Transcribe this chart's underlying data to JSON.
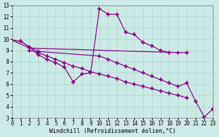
{
  "bg_color": "#cceae4",
  "grid_color": "#aad4cc",
  "line_color": "#880088",
  "marker": "+",
  "markersize": 4,
  "markeredgewidth": 1.2,
  "linewidth": 0.9,
  "x_min": 0,
  "x_max": 23,
  "y_min": 3,
  "y_max": 13,
  "xlabel": "Windchill (Refroidissement éolien,°C)",
  "xlabel_fontsize": 6.0,
  "tick_fontsize": 5.5,
  "series": [
    {
      "x": [
        0,
        1,
        2,
        3,
        4,
        5,
        6,
        7,
        8,
        9,
        10,
        11,
        12,
        13,
        14,
        15,
        16,
        17,
        18
      ],
      "y": [
        9.9,
        9.8,
        9.3,
        8.6,
        8.2,
        7.9,
        7.5,
        6.2,
        6.9,
        7.0,
        12.7,
        12.2,
        12.2,
        10.6,
        10.4,
        9.7,
        9.4,
        9.0,
        8.8
      ]
    },
    {
      "comment": "long diagonal: 0->9.9 down to 22->3.1, 23->3.8",
      "x": [
        0,
        1,
        2,
        3,
        10,
        11,
        12,
        13,
        14,
        15,
        16,
        17,
        18,
        19,
        20,
        21,
        22,
        23
      ],
      "y": [
        9.9,
        9.8,
        9.3,
        8.9,
        8.5,
        8.2,
        7.9,
        7.6,
        7.3,
        7.0,
        6.7,
        6.4,
        6.1,
        5.8,
        6.1,
        4.5,
        3.1,
        3.8
      ]
    },
    {
      "x": [
        0,
        2,
        19,
        20
      ],
      "y": [
        9.9,
        9.2,
        8.8,
        8.8
      ]
    },
    {
      "x": [
        2,
        3,
        4,
        5,
        6,
        7,
        8,
        9,
        10,
        11,
        12,
        13,
        14,
        15,
        16,
        17,
        18,
        19,
        20
      ],
      "y": [
        9.0,
        8.8,
        8.5,
        8.2,
        7.9,
        7.6,
        7.4,
        7.1,
        6.9,
        6.7,
        6.5,
        6.2,
        6.0,
        5.8,
        5.6,
        5.4,
        5.2,
        5.0,
        4.8
      ]
    }
  ]
}
